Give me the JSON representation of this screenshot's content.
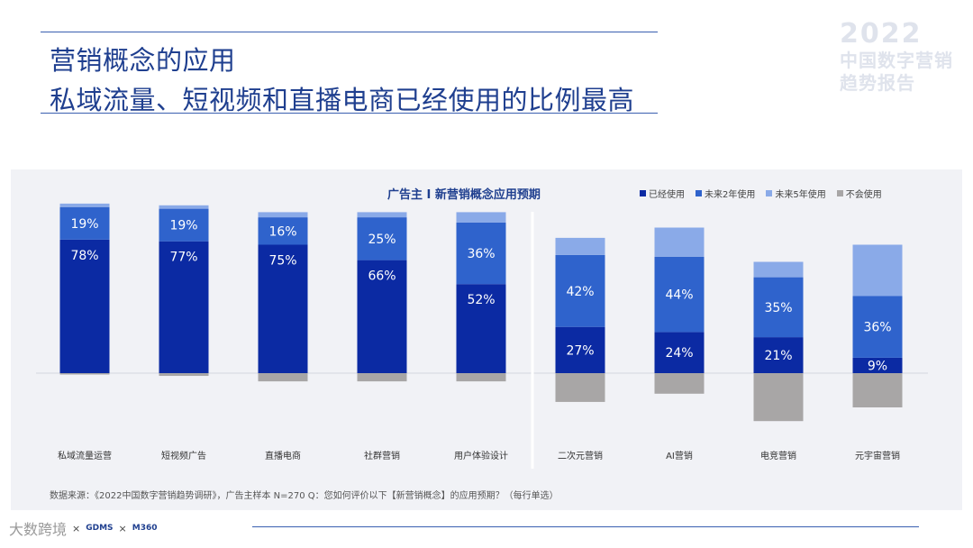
{
  "header": {
    "title_line1": "营销概念的应用",
    "title_line2": "私域流量、短视频和直播电商已经使用的比例最高"
  },
  "brand": {
    "year": "2022",
    "line1": "中国数字营销",
    "line2": "趋势报告"
  },
  "chart_data": {
    "type": "bar",
    "title": "广告主 I 新营销概念应用预期",
    "categories": [
      "私域流量运营",
      "短视频广告",
      "直播电商",
      "社群营销",
      "用户体验设计",
      "二次元营销",
      "AI营销",
      "电竞营销",
      "元宇宙营销"
    ],
    "series": [
      {
        "name": "已经使用",
        "color": "#0b2aa3",
        "values": [
          78,
          77,
          75,
          66,
          52,
          27,
          24,
          21,
          9
        ]
      },
      {
        "name": "未来2年使用",
        "color": "#2f63cc",
        "values": [
          19,
          19,
          16,
          25,
          36,
          42,
          44,
          35,
          36
        ]
      },
      {
        "name": "未来5年使用",
        "color": "#8aaae8",
        "values": [
          2,
          2,
          3,
          3,
          6,
          10,
          17,
          9,
          30
        ]
      },
      {
        "name": "不会使用",
        "color": "#a8a6a6",
        "values": [
          1,
          2,
          6,
          6,
          6,
          21,
          15,
          35,
          25
        ]
      }
    ],
    "labels_shown": [
      [
        "19%",
        "78%"
      ],
      [
        "19%",
        "77%"
      ],
      [
        "16%",
        "75%"
      ],
      [
        "25%",
        "66%"
      ],
      [
        "36%",
        "52%"
      ],
      [
        "42%",
        "27%"
      ],
      [
        "44%",
        "24%"
      ],
      [
        "35%",
        "21%"
      ],
      [
        "36%",
        "9%"
      ]
    ],
    "ylim": [
      -35,
      100
    ]
  },
  "legend": [
    {
      "label": "已经使用",
      "color": "#0b2aa3"
    },
    {
      "label": "未来2年使用",
      "color": "#2f63cc"
    },
    {
      "label": "未来5年使用",
      "color": "#8aaae8"
    },
    {
      "label": "不会使用",
      "color": "#a8a6a6"
    }
  ],
  "source": "数据来源：《2022中国数字营销趋势调研》，广告主样本 N=270    Q：您如何评价以下【新营销概念】的应用预期？（每行单选）",
  "footer": {
    "watermark": "大数跨境",
    "logo2": "GDMS",
    "logo3": "M360",
    "sep": "×"
  }
}
